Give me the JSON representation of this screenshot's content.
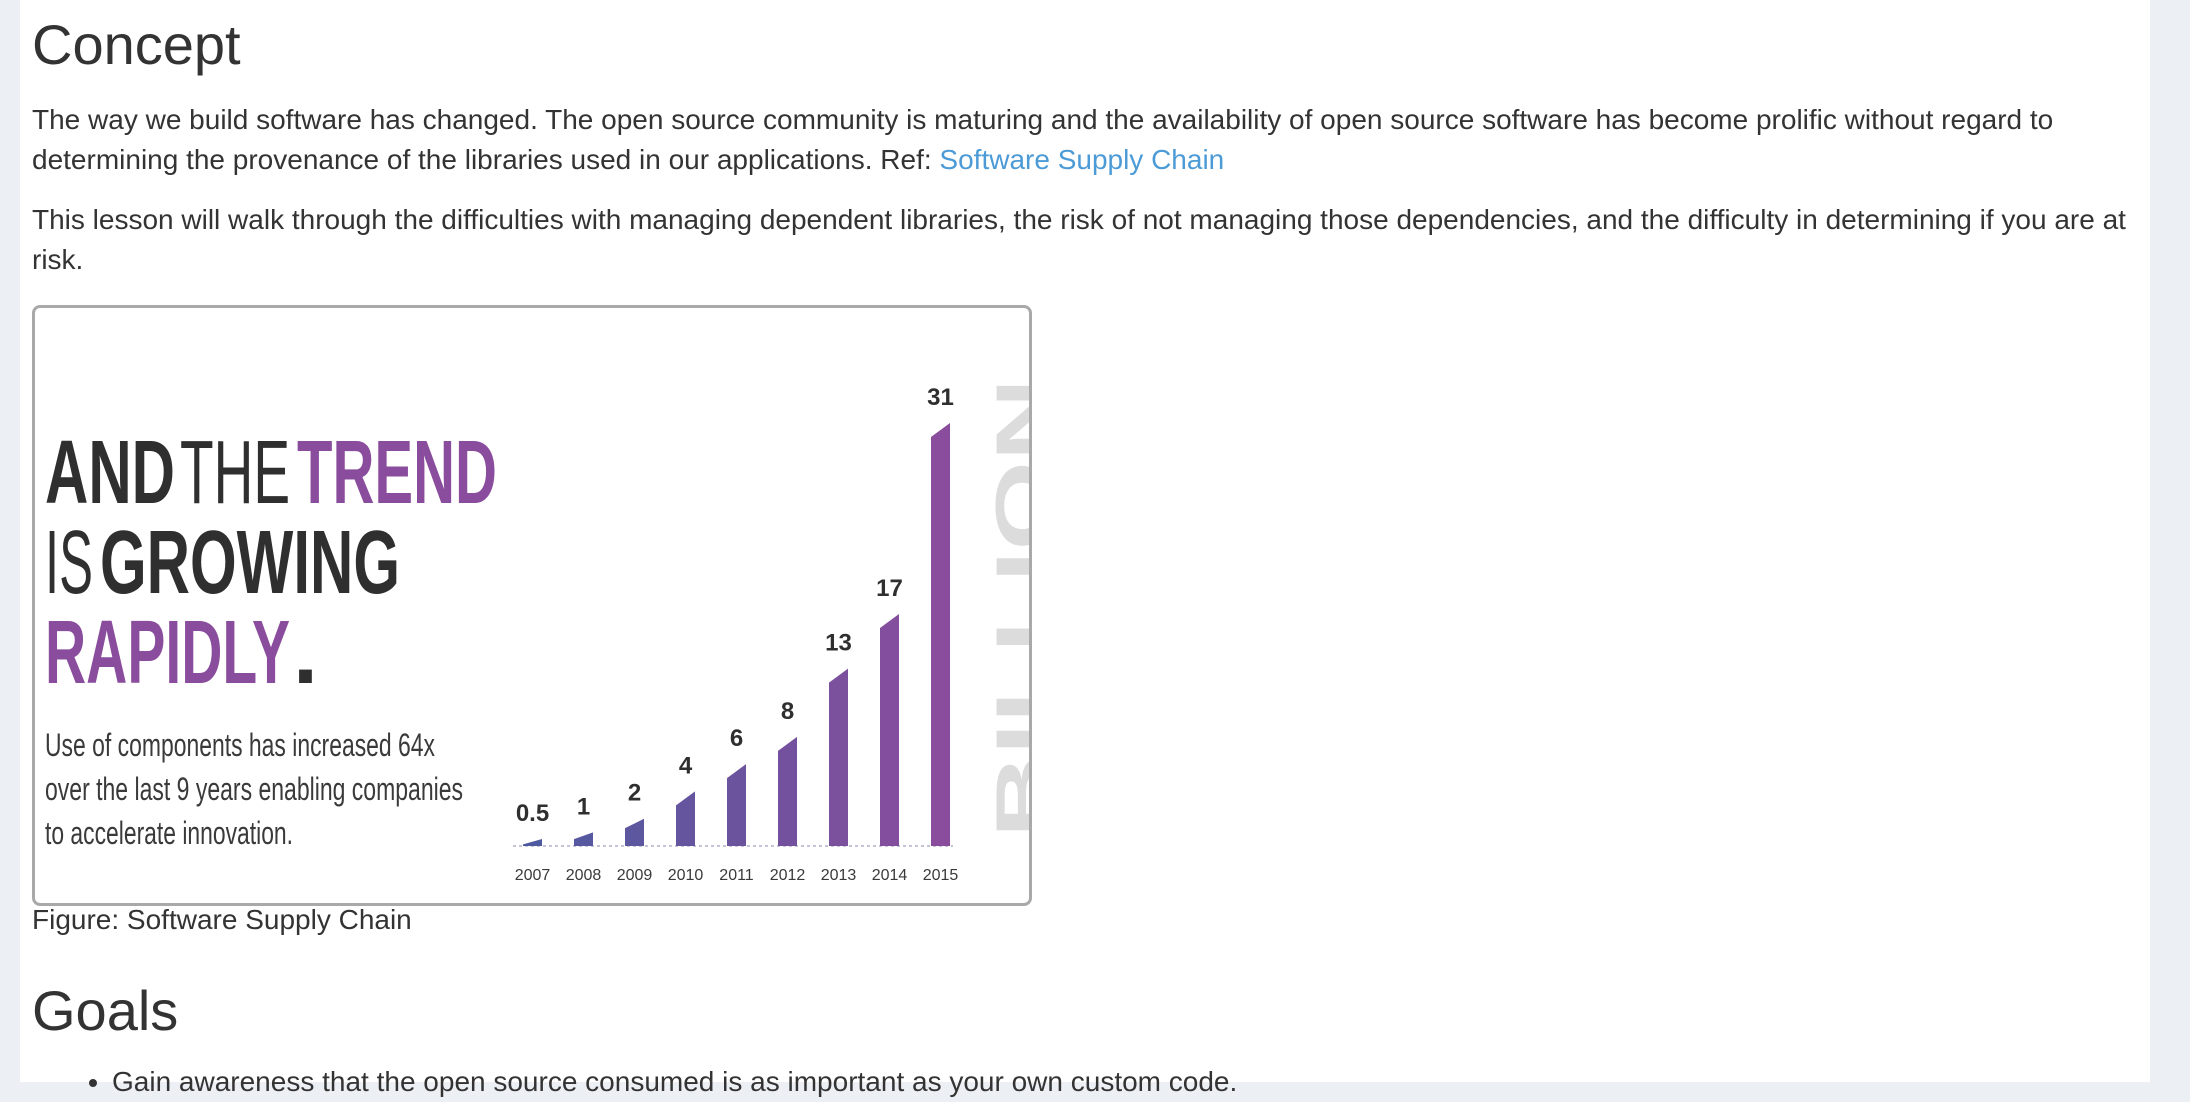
{
  "concept": {
    "heading": "Concept",
    "paragraph1_text": "The way we build software has changed. The open source community is maturing and the availability of open source software has become prolific without regard to determining the provenance of the libraries used in our applications. Ref: ",
    "paragraph1_link": "Software Supply Chain",
    "paragraph2_text": "This lesson will walk through the difficulties with managing dependent libraries, the risk of not managing those dependencies, and the difficulty in determining if you are at risk."
  },
  "figure": {
    "headline_and": "AND",
    "headline_the": "THE",
    "headline_trend": "TREND",
    "headline_is": "IS",
    "headline_growing": "GROWING",
    "headline_rapidly": "RAPIDLY",
    "headline_period": ".",
    "subtext_line1": "Use of components has increased 64x",
    "subtext_line2": "over the last 9 years enabling companies",
    "subtext_line3": "to accelerate innovation.",
    "unit_label": "BILLION",
    "caption": "Figure: Software Supply Chain",
    "colors": {
      "dark_text": "#2f2f2f",
      "purple": "#8a4c9c",
      "bar_start": "#4e5aa0",
      "bar_end": "#8a4c9c",
      "unit_gray": "#dcdcdc"
    }
  },
  "chart_data": {
    "type": "bar",
    "categories": [
      "2007",
      "2008",
      "2009",
      "2010",
      "2011",
      "2012",
      "2013",
      "2014",
      "2015"
    ],
    "values": [
      0.5,
      1,
      2,
      4,
      6,
      8,
      13,
      17,
      31
    ],
    "value_labels": [
      "0.5",
      "1",
      "2",
      "4",
      "6",
      "8",
      "13",
      "17",
      "31"
    ],
    "ylim": [
      0,
      31
    ],
    "grid": false
  },
  "goals": {
    "heading": "Goals",
    "items": [
      "Gain awareness that the open source consumed is as important as your own custom code."
    ]
  }
}
